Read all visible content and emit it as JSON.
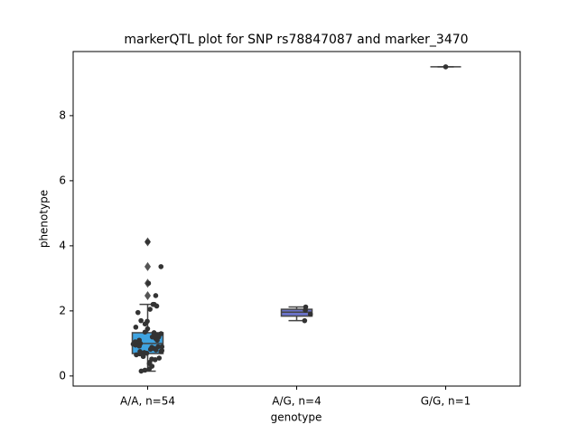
{
  "chart_data": {
    "type": "box",
    "title": "markerQTL plot for SNP rs78847087 and marker_3470",
    "x_label": "genotype",
    "y_label": "phenotype",
    "categories": [
      "A/A, n=54",
      "A/G, n=4",
      "G/G, n=1"
    ],
    "ylim": [
      -0.31,
      9.97
    ],
    "yticks": [
      0,
      2,
      4,
      6,
      8
    ],
    "point_color": "#333333",
    "boxes": [
      {
        "color": "#3fa3e0",
        "whislo": 0.15,
        "q1": 0.69,
        "med": 1.0,
        "q3": 1.33,
        "whishi": 2.2,
        "fliers": [
          2.47,
          2.85,
          3.36,
          4.12
        ]
      },
      {
        "color": "#6b73c9",
        "whislo": 1.7,
        "q1": 1.84,
        "med": 1.96,
        "q3": 2.05,
        "whishi": 2.12,
        "fliers": []
      },
      {
        "color": "#5d5d8f",
        "whislo": 9.5,
        "q1": 9.5,
        "med": 9.5,
        "q3": 9.5,
        "whishi": 9.5,
        "fliers": []
      }
    ],
    "points": [
      [
        4.12,
        3.36,
        2.85,
        2.47,
        2.2,
        2.2,
        2.15,
        2.05,
        1.95,
        1.7,
        1.68,
        1.6,
        1.5,
        1.45,
        1.35,
        1.33,
        1.3,
        1.3,
        1.25,
        1.2,
        1.2,
        1.15,
        1.1,
        1.1,
        1.05,
        1.0,
        1.0,
        0.98,
        0.95,
        0.92,
        0.9,
        0.9,
        0.88,
        0.85,
        0.82,
        0.8,
        0.78,
        0.75,
        0.75,
        0.72,
        0.7,
        0.7,
        0.68,
        0.65,
        0.6,
        0.55,
        0.52,
        0.5,
        0.42,
        0.38,
        0.3,
        0.22,
        0.18,
        0.15
      ],
      [
        2.12,
        2.02,
        1.9,
        1.7
      ],
      [
        9.5
      ]
    ]
  }
}
